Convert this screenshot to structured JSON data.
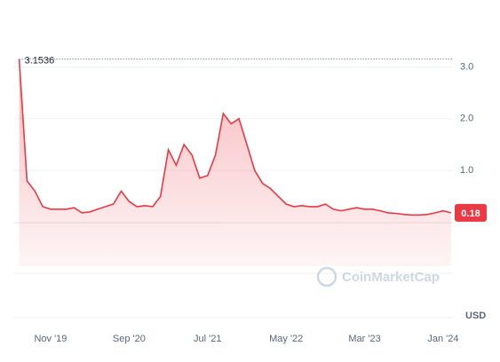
{
  "chart_data": {
    "type": "line",
    "categories": [
      null,
      null,
      null,
      null,
      "Nov '19",
      null,
      null,
      null,
      null,
      null,
      null,
      null,
      null,
      null,
      "Sep '20",
      null,
      null,
      null,
      null,
      null,
      null,
      null,
      null,
      null,
      "Jul '21",
      null,
      null,
      null,
      null,
      null,
      null,
      null,
      null,
      null,
      "May '22",
      null,
      null,
      null,
      null,
      null,
      null,
      null,
      null,
      null,
      "Mar '23",
      null,
      null,
      null,
      null,
      null,
      null,
      null,
      null,
      null,
      "Jan '24",
      null
    ],
    "series": [
      {
        "name": "Price",
        "color": "#ea3943",
        "values": [
          3.1536,
          0.8,
          0.6,
          0.3,
          0.25,
          0.25,
          0.25,
          0.28,
          0.18,
          0.2,
          0.25,
          0.3,
          0.35,
          0.6,
          0.4,
          0.3,
          0.32,
          0.3,
          0.5,
          1.4,
          1.1,
          1.5,
          1.3,
          0.85,
          0.9,
          1.3,
          2.1,
          1.9,
          2.0,
          1.5,
          1.0,
          0.75,
          0.65,
          0.5,
          0.35,
          0.3,
          0.32,
          0.3,
          0.3,
          0.35,
          0.25,
          0.22,
          0.25,
          0.28,
          0.25,
          0.25,
          0.22,
          0.18,
          0.17,
          0.15,
          0.14,
          0.14,
          0.15,
          0.18,
          0.22,
          0.18
        ]
      }
    ],
    "ylim": [
      -0.85,
      3.95
    ],
    "yticks": [
      {
        "value": 1,
        "label": "1.0"
      },
      {
        "value": 2,
        "label": "2.0"
      },
      {
        "value": 3,
        "label": "3.0"
      }
    ],
    "grid": true,
    "max_label": "3.1536",
    "current_label": "0.18",
    "currency": "USD",
    "watermark": "CoinMarketCap"
  }
}
